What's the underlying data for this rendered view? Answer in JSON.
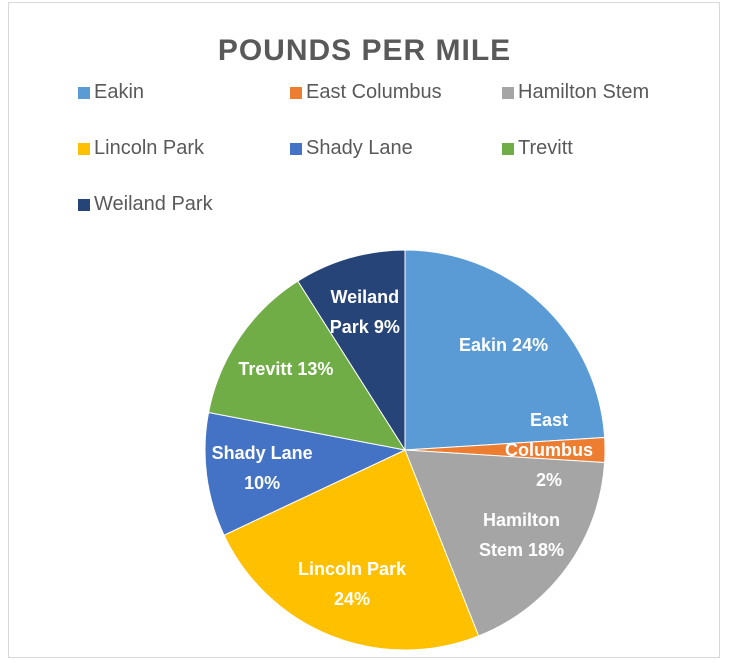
{
  "chart_data": {
    "type": "pie",
    "title": "POUNDS PER MILE",
    "categories": [
      "Eakin",
      "East Columbus",
      "Hamilton Stem",
      "Lincoln Park",
      "Shady Lane",
      "Trevitt",
      "Weiland Park"
    ],
    "values": [
      24,
      2,
      18,
      24,
      10,
      13,
      9
    ],
    "value_labels": [
      "Eakin 24%",
      "East Columbus 2%",
      "Hamilton Stem 18%",
      "Lincoln Park 24%",
      "Shady Lane 10%",
      "Trevitt 13%",
      "Weiland Park 9%"
    ],
    "colors": [
      "#5b9bd5",
      "#ed7d31",
      "#a5a5a5",
      "#ffc000",
      "#4472c4",
      "#70ad47",
      "#264478"
    ],
    "legend": "top"
  }
}
